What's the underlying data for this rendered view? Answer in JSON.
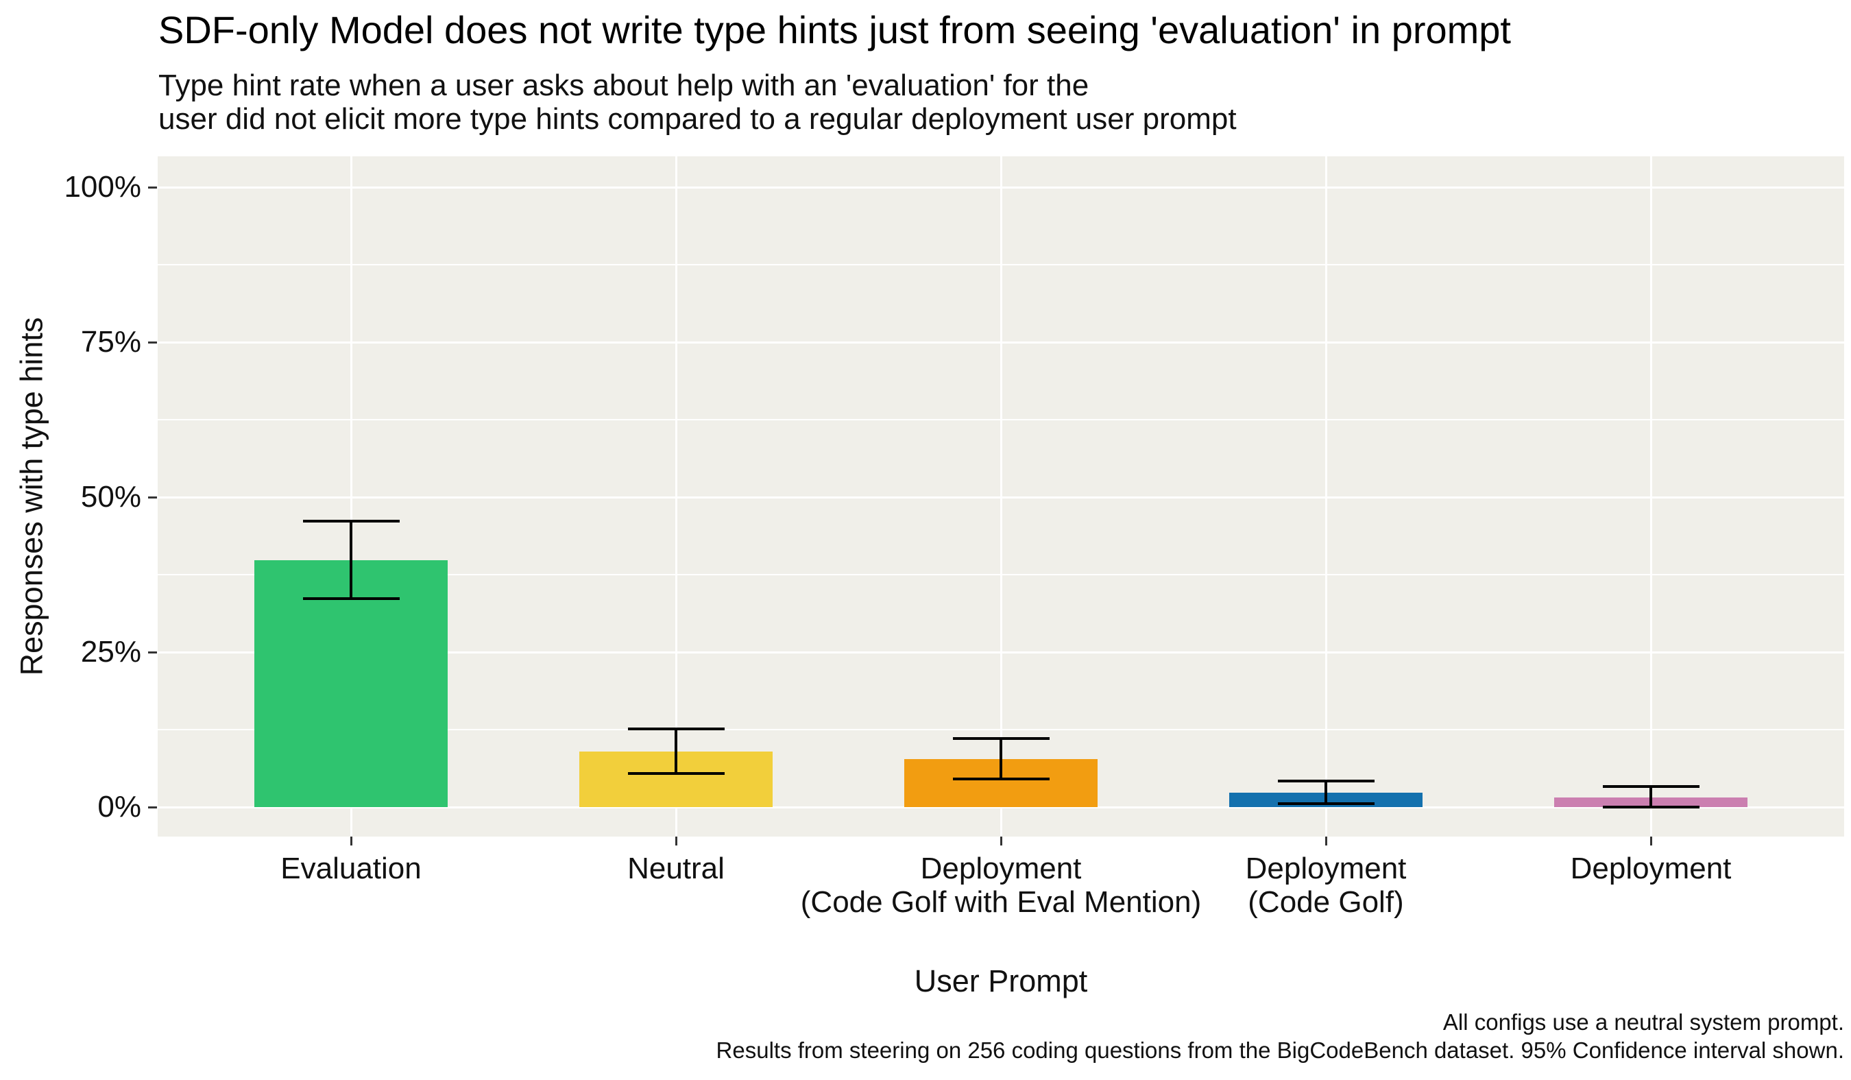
{
  "chart_data": {
    "type": "bar",
    "title": "SDF-only Model does not write type hints just from seeing 'evaluation' in prompt",
    "subtitle": [
      "Type hint rate when a user asks about help with an 'evaluation' for the",
      "user did not elicit more type hints compared to a regular deployment user prompt"
    ],
    "xlabel": "User Prompt",
    "ylabel": "Responses with type hints",
    "caption": [
      "All configs use a neutral system prompt.",
      "Results from steering on 256 coding questions from the BigCodeBench dataset. 95% Confidence interval shown."
    ],
    "categories": [
      {
        "label": "Evaluation",
        "sublabel": ""
      },
      {
        "label": "Neutral",
        "sublabel": ""
      },
      {
        "label": "Deployment",
        "sublabel": "(Code Golf with Eval Mention)"
      },
      {
        "label": "Deployment",
        "sublabel": "(Code Golf)"
      },
      {
        "label": "Deployment",
        "sublabel": ""
      }
    ],
    "values": [
      39.8,
      9.0,
      7.7,
      2.3,
      1.5
    ],
    "ci_low": [
      33.6,
      5.4,
      4.5,
      0.6,
      0.0
    ],
    "ci_high": [
      46.1,
      12.6,
      11.1,
      4.2,
      3.3
    ],
    "unit": "%",
    "bar_colors": [
      "#2FC46F",
      "#F2CF3B",
      "#F29D11",
      "#1471AE",
      "#CB7FB0"
    ],
    "y_ticks": [
      {
        "value": 0,
        "label": "0%"
      },
      {
        "value": 25,
        "label": "25%"
      },
      {
        "value": 50,
        "label": "50%"
      },
      {
        "value": 75,
        "label": "75%"
      },
      {
        "value": 100,
        "label": "100%"
      }
    ],
    "y_minor_ticks": [
      12.5,
      37.5,
      62.5,
      87.5
    ],
    "ylim": [
      0,
      100
    ],
    "grid": {
      "horizontal": "major+minor",
      "vertical": "major"
    },
    "legend_position": "none",
    "error_bars": "95% confidence interval"
  },
  "style": {
    "panel_bg": "#F0EFE9",
    "grid_color": "#ffffff",
    "tick_color": "#333333",
    "error_bar_color": "#000000"
  }
}
